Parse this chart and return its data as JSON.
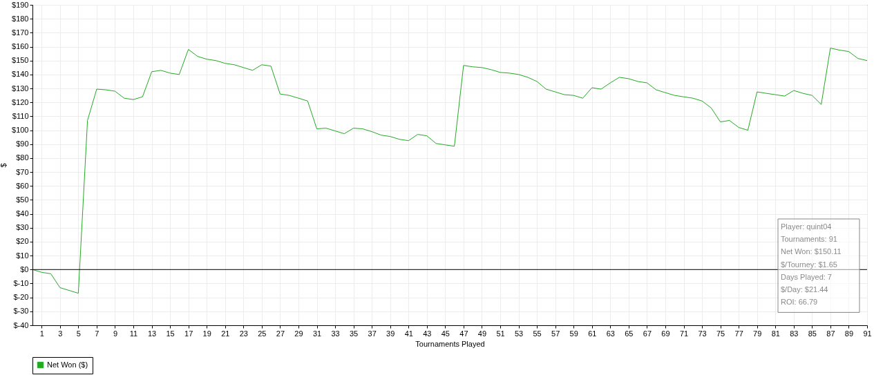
{
  "chart_data": {
    "type": "line",
    "xlabel": "Tournaments Played",
    "ylabel": "$",
    "x": [
      0,
      1,
      2,
      3,
      4,
      5,
      6,
      7,
      8,
      9,
      10,
      11,
      12,
      13,
      14,
      15,
      16,
      17,
      18,
      19,
      20,
      21,
      22,
      23,
      24,
      25,
      26,
      27,
      28,
      29,
      30,
      31,
      32,
      33,
      34,
      35,
      36,
      37,
      38,
      39,
      40,
      41,
      42,
      43,
      44,
      45,
      46,
      47,
      48,
      49,
      50,
      51,
      52,
      53,
      54,
      55,
      56,
      57,
      58,
      59,
      60,
      61,
      62,
      63,
      64,
      65,
      66,
      67,
      68,
      69,
      70,
      71,
      72,
      73,
      74,
      75,
      76,
      77,
      78,
      79,
      80,
      81,
      82,
      83,
      84,
      85,
      86,
      87,
      88,
      89,
      90,
      91
    ],
    "series": [
      {
        "name": "Net Won ($)",
        "color": "#22aa22",
        "values": [
          0,
          -2,
          -3,
          -13,
          -15,
          -17,
          107,
          129.5,
          129,
          128,
          123,
          122,
          124,
          142,
          143,
          141,
          140,
          158,
          153,
          151,
          150,
          148,
          147,
          145,
          143,
          147,
          146,
          126,
          125,
          123,
          121,
          101,
          101.5,
          99.5,
          97.5,
          101.5,
          101,
          99,
          96.5,
          95.5,
          93.5,
          92.5,
          97,
          96,
          90.5,
          89.5,
          88.5,
          146.5,
          145.5,
          145,
          143.5,
          141.5,
          141,
          140,
          138,
          135,
          129.5,
          127.5,
          125.5,
          125,
          123,
          130.5,
          129.5,
          134,
          138,
          137,
          135,
          134,
          129,
          127,
          125,
          124,
          123,
          121,
          116,
          106,
          107,
          102,
          100,
          127.5,
          126.5,
          125.5,
          124.5,
          128.5,
          126.5,
          125,
          118.5,
          159,
          157.5,
          156.5,
          151.5,
          150
        ]
      }
    ],
    "xlim": [
      0,
      91
    ],
    "xticks": [
      1,
      3,
      5,
      7,
      9,
      11,
      13,
      15,
      17,
      19,
      21,
      23,
      25,
      27,
      29,
      31,
      33,
      35,
      37,
      39,
      41,
      43,
      45,
      47,
      49,
      51,
      53,
      55,
      57,
      59,
      61,
      63,
      65,
      67,
      69,
      71,
      73,
      75,
      77,
      79,
      81,
      83,
      85,
      87,
      89,
      91
    ],
    "ylim": [
      -40,
      190
    ],
    "yticks": [
      {
        "value": -40,
        "label": "$-40"
      },
      {
        "value": -30,
        "label": "$-30"
      },
      {
        "value": -20,
        "label": "$-20"
      },
      {
        "value": -10,
        "label": "$-10"
      },
      {
        "value": 0,
        "label": "$0"
      },
      {
        "value": 10,
        "label": "$10"
      },
      {
        "value": 20,
        "label": "$20"
      },
      {
        "value": 30,
        "label": "$30"
      },
      {
        "value": 40,
        "label": "$40"
      },
      {
        "value": 50,
        "label": "$50"
      },
      {
        "value": 60,
        "label": "$60"
      },
      {
        "value": 70,
        "label": "$70"
      },
      {
        "value": 80,
        "label": "$80"
      },
      {
        "value": 90,
        "label": "$90"
      },
      {
        "value": 100,
        "label": "$100"
      },
      {
        "value": 110,
        "label": "$110"
      },
      {
        "value": 120,
        "label": "$120"
      },
      {
        "value": 130,
        "label": "$130"
      },
      {
        "value": 140,
        "label": "$140"
      },
      {
        "value": 150,
        "label": "$150"
      },
      {
        "value": 160,
        "label": "$160"
      },
      {
        "value": 170,
        "label": "$170"
      },
      {
        "value": 180,
        "label": "$180"
      },
      {
        "value": 190,
        "label": "$190"
      }
    ],
    "ref_lines": [
      {
        "axis": "y",
        "value": 0,
        "color": "#000000"
      }
    ],
    "annotations": [
      "Player: quint04",
      "Tournaments: 91",
      "Net Won: $150.11",
      "$/Tourney: $1.65",
      "Days Played: 7",
      "$/Day: $21.44",
      "ROI: 66.79"
    ],
    "grid": true,
    "legend": "bottom left",
    "marker": "none",
    "line_style": "solid"
  }
}
